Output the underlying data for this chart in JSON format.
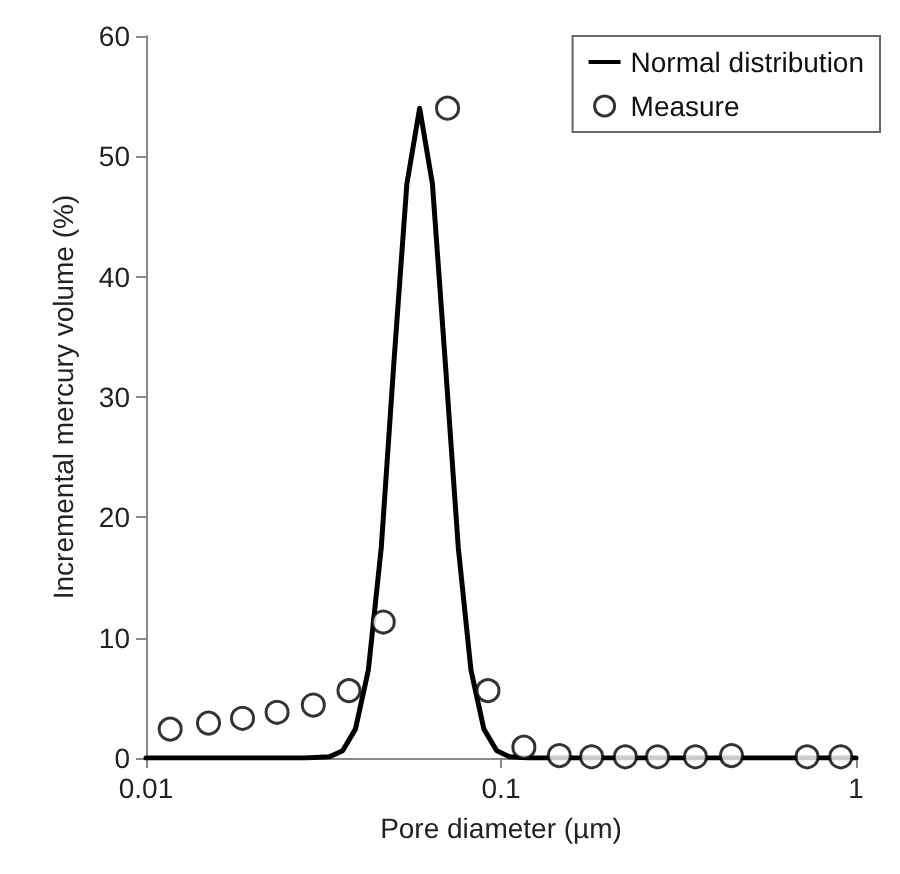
{
  "chart_data": {
    "type": "scatter",
    "xlabel": "Pore diameter (µm)",
    "ylabel": "Incremental mercury volume (%)",
    "log": "x",
    "xlim": [
      0.01,
      1
    ],
    "xticks": [
      0.01,
      0.1,
      1
    ],
    "ylim": [
      0,
      60
    ],
    "yticks": [
      0,
      10,
      20,
      30,
      40,
      50,
      60
    ],
    "grid": false,
    "legend": "top right",
    "series": [
      {
        "name": "Normal distribution",
        "type": "line",
        "color": "#000000",
        "marker": "none",
        "line_style": "solid",
        "x": [
          0.01,
          0.028,
          0.0329,
          0.0358,
          0.0389,
          0.0423,
          0.046,
          0.0499,
          0.0543,
          0.059,
          0.0641,
          0.0697,
          0.0758,
          0.0823,
          0.0895,
          0.0973,
          0.1058,
          0.12,
          1
        ],
        "values": [
          0,
          0,
          0.1,
          0.6,
          2.4,
          7.3,
          17.5,
          32.8,
          47.7,
          54,
          47.7,
          32.8,
          17.5,
          7.3,
          2.4,
          0.6,
          0.1,
          0,
          0
        ]
      },
      {
        "name": "Measure",
        "type": "scatter",
        "color": "#000000",
        "marker": "circle",
        "x": [
          0.0117,
          0.015,
          0.0187,
          0.0234,
          0.0296,
          0.0373,
          0.0466,
          0.0707,
          0.0919,
          0.116,
          0.146,
          0.18,
          0.224,
          0.276,
          0.353,
          0.446,
          0.728,
          0.906
        ],
        "values": [
          2.4,
          2.9,
          3.3,
          3.8,
          4.4,
          5.6,
          11.3,
          54,
          5.6,
          0.9,
          0.2,
          0.1,
          0.1,
          0.1,
          0.1,
          0.2,
          0.1,
          0.1
        ]
      }
    ]
  }
}
